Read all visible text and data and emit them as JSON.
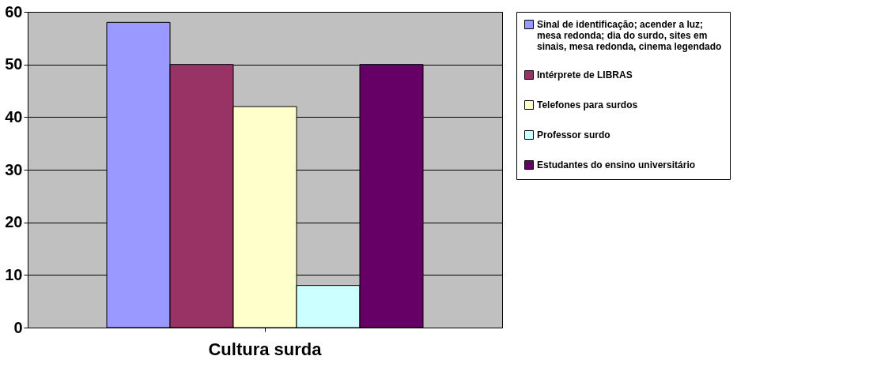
{
  "chart_data": {
    "type": "bar",
    "categories": [
      "Cultura surda"
    ],
    "series": [
      {
        "name": "Sinal de identificação; acender a luz; mesa redonda; dia do surdo, sites em sinais, mesa redonda, cinema legendado",
        "color": "#9999ff",
        "values": [
          58
        ]
      },
      {
        "name": "Intérprete de LIBRAS",
        "color": "#993366",
        "values": [
          50
        ]
      },
      {
        "name": "Telefones para surdos",
        "color": "#ffffcc",
        "values": [
          42
        ]
      },
      {
        "name": "Professor surdo",
        "color": "#ccffff",
        "values": [
          8
        ]
      },
      {
        "name": "Estudantes do ensino universitário",
        "color": "#660066",
        "values": [
          50
        ]
      }
    ],
    "ylim": [
      0,
      60
    ],
    "yticks": [
      0,
      10,
      20,
      30,
      40,
      50,
      60
    ],
    "grid": "y",
    "legend": "right"
  }
}
